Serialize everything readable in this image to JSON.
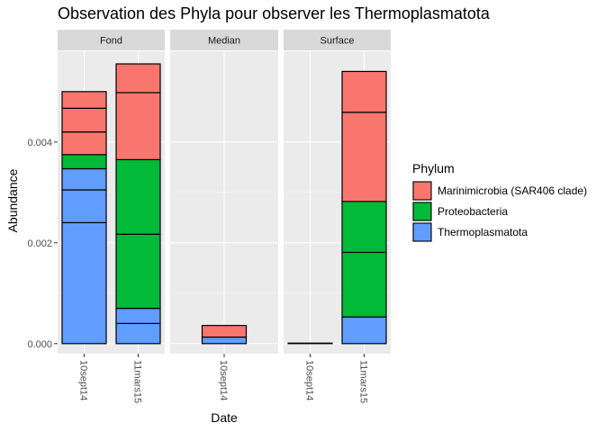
{
  "chart_data": {
    "type": "bar",
    "stacked": true,
    "title": "Observation des Phyla pour observer les Thermoplasmatota",
    "xlabel": "Date",
    "ylabel": "Abundance",
    "ylim": [
      -0.0002,
      0.0058
    ],
    "yticks": [
      0.0,
      0.002,
      0.004
    ],
    "ytick_labels": [
      "0.000",
      "0.002",
      "0.004"
    ],
    "grid": true,
    "legend": {
      "title": "Phylum",
      "position": "right",
      "entries": [
        {
          "label": "Marinimicrobia (SAR406 clade)",
          "color": "#F8766D"
        },
        {
          "label": "Proteobacteria",
          "color": "#00BA38"
        },
        {
          "label": "Thermoplasmatota",
          "color": "#619CFF"
        }
      ]
    },
    "colors": {
      "Thermoplasmatota": "#619CFF",
      "Proteobacteria": "#00BA38",
      "Marinimicrobia (SAR406 clade)": "#F8766D"
    },
    "panels": [
      {
        "name": "Fond",
        "categories": [
          "10sept14",
          "11mars15"
        ],
        "bars": [
          {
            "category": "10sept14",
            "segments": [
              {
                "phylum": "Thermoplasmatota",
                "value": 0.0024
              },
              {
                "phylum": "Thermoplasmatota",
                "value": 0.00065
              },
              {
                "phylum": "Thermoplasmatota",
                "value": 0.00042
              },
              {
                "phylum": "Proteobacteria",
                "value": 0.00028
              },
              {
                "phylum": "Marinimicrobia (SAR406 clade)",
                "value": 0.00045
              },
              {
                "phylum": "Marinimicrobia (SAR406 clade)",
                "value": 0.00047
              },
              {
                "phylum": "Marinimicrobia (SAR406 clade)",
                "value": 0.00033
              }
            ]
          },
          {
            "category": "11mars15",
            "segments": [
              {
                "phylum": "Thermoplasmatota",
                "value": 0.0004
              },
              {
                "phylum": "Thermoplasmatota",
                "value": 0.0003
              },
              {
                "phylum": "Proteobacteria",
                "value": 0.00147
              },
              {
                "phylum": "Proteobacteria",
                "value": 0.00148
              },
              {
                "phylum": "Marinimicrobia (SAR406 clade)",
                "value": 0.00133
              },
              {
                "phylum": "Marinimicrobia (SAR406 clade)",
                "value": 0.00057
              }
            ]
          }
        ]
      },
      {
        "name": "Median",
        "categories": [
          "10sept14"
        ],
        "bars": [
          {
            "category": "10sept14",
            "segments": [
              {
                "phylum": "Thermoplasmatota",
                "value": 0.00013
              },
              {
                "phylum": "Marinimicrobia (SAR406 clade)",
                "value": 0.00023
              }
            ]
          }
        ]
      },
      {
        "name": "Surface",
        "categories": [
          "10sept14",
          "11mars15"
        ],
        "bars": [
          {
            "category": "10sept14",
            "segments": [
              {
                "phylum": "Thermoplasmatota",
                "value": 1e-05
              }
            ]
          },
          {
            "category": "11mars15",
            "segments": [
              {
                "phylum": "Thermoplasmatota",
                "value": 0.00053
              },
              {
                "phylum": "Proteobacteria",
                "value": 0.00128
              },
              {
                "phylum": "Proteobacteria",
                "value": 0.00101
              },
              {
                "phylum": "Marinimicrobia (SAR406 clade)",
                "value": 0.00177
              },
              {
                "phylum": "Marinimicrobia (SAR406 clade)",
                "value": 0.00081
              }
            ]
          }
        ]
      }
    ]
  }
}
